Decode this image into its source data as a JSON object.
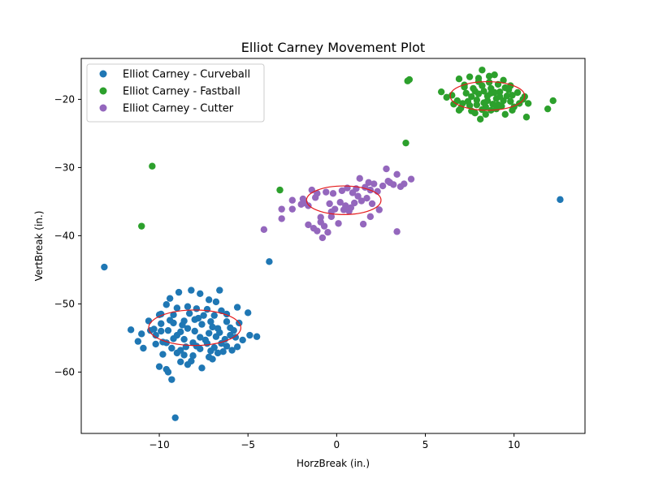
{
  "chart_data": {
    "type": "scatter",
    "title": "Elliot Carney Movement Plot",
    "xlabel": "HorzBreak (in.)",
    "ylabel": "VertBreak (in.)",
    "xlim": [
      -14.4,
      14.0
    ],
    "ylim": [
      -69.0,
      -14.0
    ],
    "xticks": [
      -10,
      -5,
      0,
      5,
      10
    ],
    "xtick_labels": [
      "−10",
      "−5",
      "0",
      "5",
      "10"
    ],
    "yticks": [
      -60,
      -50,
      -40,
      -30,
      -20
    ],
    "ytick_labels": [
      "−60",
      "−50",
      "−40",
      "−30",
      "−20"
    ],
    "grid": false,
    "legend_position": "upper-left",
    "series": [
      {
        "name": "Elliot Carney - Curveball",
        "color": "#1f77b4",
        "ellipse": {
          "cx": -8.0,
          "cy": -53.5,
          "rx": 2.6,
          "ry": 2.6
        },
        "points": [
          [
            -13.1,
            -44.6
          ],
          [
            -3.8,
            -43.8
          ],
          [
            12.6,
            -34.7
          ],
          [
            -9.1,
            -66.7
          ],
          [
            -9.3,
            -61.1
          ],
          [
            -11.6,
            -53.8
          ],
          [
            -11.0,
            -54.4
          ],
          [
            -11.2,
            -55.5
          ],
          [
            -10.2,
            -54.6
          ],
          [
            -9.9,
            -54.0
          ],
          [
            -10.0,
            -59.2
          ],
          [
            -9.5,
            -60.0
          ],
          [
            -9.6,
            -59.6
          ],
          [
            -8.8,
            -58.5
          ],
          [
            -8.4,
            -58.9
          ],
          [
            -8.2,
            -58.4
          ],
          [
            -7.6,
            -59.4
          ],
          [
            -7.2,
            -57.8
          ],
          [
            -6.7,
            -57.2
          ],
          [
            -6.2,
            -56.2
          ],
          [
            -5.6,
            -56.3
          ],
          [
            -5.7,
            -54.9
          ],
          [
            -4.9,
            -54.6
          ],
          [
            -4.5,
            -54.8
          ],
          [
            -5.0,
            -51.3
          ],
          [
            -5.5,
            -52.8
          ],
          [
            -6.0,
            -53.5
          ],
          [
            -6.5,
            -51.0
          ],
          [
            -6.8,
            -49.7
          ],
          [
            -6.6,
            -48.0
          ],
          [
            -7.2,
            -49.4
          ],
          [
            -7.7,
            -48.5
          ],
          [
            -8.2,
            -48.0
          ],
          [
            -8.9,
            -48.3
          ],
          [
            -9.4,
            -49.2
          ],
          [
            -9.6,
            -50.1
          ],
          [
            -9.0,
            -50.6
          ],
          [
            -9.9,
            -51.5
          ],
          [
            -10.6,
            -52.5
          ],
          [
            -10.3,
            -53.7
          ],
          [
            -10.9,
            -56.5
          ],
          [
            -9.8,
            -55.6
          ],
          [
            -9.3,
            -56.5
          ],
          [
            -9.0,
            -57.2
          ],
          [
            -8.5,
            -56.3
          ],
          [
            -8.1,
            -57.6
          ],
          [
            -7.7,
            -56.6
          ],
          [
            -7.3,
            -55.8
          ],
          [
            -6.9,
            -56.4
          ],
          [
            -6.3,
            -55.2
          ],
          [
            -6.0,
            -54.6
          ],
          [
            -6.7,
            -53.6
          ],
          [
            -7.1,
            -52.6
          ],
          [
            -7.5,
            -51.7
          ],
          [
            -7.9,
            -50.7
          ],
          [
            -8.3,
            -51.4
          ],
          [
            -8.6,
            -52.5
          ],
          [
            -9.2,
            -52.8
          ],
          [
            -9.5,
            -53.9
          ],
          [
            -9.0,
            -54.6
          ],
          [
            -8.6,
            -55.2
          ],
          [
            -8.1,
            -55.7
          ],
          [
            -7.7,
            -54.9
          ],
          [
            -7.2,
            -54.3
          ],
          [
            -6.8,
            -54.8
          ],
          [
            -6.5,
            -55.8
          ],
          [
            -7.0,
            -53.4
          ],
          [
            -7.6,
            -53.0
          ],
          [
            -8.0,
            -52.3
          ],
          [
            -8.4,
            -53.6
          ],
          [
            -8.8,
            -54.1
          ],
          [
            -9.2,
            -55.1
          ],
          [
            -9.6,
            -55.7
          ],
          [
            -10.2,
            -55.9
          ],
          [
            -8.0,
            -54.0
          ],
          [
            -7.4,
            -55.3
          ],
          [
            -6.2,
            -52.6
          ],
          [
            -5.8,
            -53.9
          ],
          [
            -5.3,
            -55.3
          ],
          [
            -6.4,
            -57.0
          ],
          [
            -7.0,
            -58.1
          ],
          [
            -8.6,
            -57.5
          ],
          [
            -9.8,
            -57.4
          ],
          [
            -10.5,
            -53.9
          ],
          [
            -10.0,
            -51.6
          ],
          [
            -9.2,
            -51.6
          ],
          [
            -8.4,
            -50.4
          ],
          [
            -7.3,
            -50.8
          ],
          [
            -6.2,
            -51.5
          ],
          [
            -5.6,
            -50.5
          ],
          [
            -6.9,
            -51.7
          ],
          [
            -7.8,
            -52.1
          ],
          [
            -8.7,
            -53.1
          ],
          [
            -9.4,
            -52.4
          ],
          [
            -9.9,
            -52.9
          ],
          [
            -7.1,
            -56.9
          ],
          [
            -7.9,
            -56.2
          ],
          [
            -8.8,
            -56.8
          ],
          [
            -6.6,
            -54.2
          ],
          [
            -5.9,
            -56.8
          ]
        ]
      },
      {
        "name": "Elliot Carney - Fastball",
        "color": "#2ca02c",
        "ellipse": {
          "cx": 8.5,
          "cy": -19.5,
          "rx": 2.1,
          "ry": 2.1
        },
        "points": [
          [
            -10.4,
            -29.8
          ],
          [
            -11.0,
            -38.6
          ],
          [
            -3.2,
            -33.3
          ],
          [
            3.9,
            -26.4
          ],
          [
            4.0,
            -17.3
          ],
          [
            4.1,
            -17.1
          ],
          [
            5.9,
            -18.9
          ],
          [
            6.2,
            -19.7
          ],
          [
            6.6,
            -20.7
          ],
          [
            6.9,
            -21.6
          ],
          [
            7.2,
            -18.2
          ],
          [
            6.9,
            -17.0
          ],
          [
            7.5,
            -16.7
          ],
          [
            8.0,
            -17.4
          ],
          [
            8.2,
            -15.7
          ],
          [
            8.6,
            -16.6
          ],
          [
            8.9,
            -16.4
          ],
          [
            9.4,
            -17.2
          ],
          [
            9.8,
            -18.0
          ],
          [
            10.2,
            -19.0
          ],
          [
            10.5,
            -20.0
          ],
          [
            10.8,
            -20.6
          ],
          [
            10.7,
            -22.6
          ],
          [
            11.9,
            -21.4
          ],
          [
            12.2,
            -20.2
          ],
          [
            9.9,
            -21.6
          ],
          [
            9.5,
            -22.2
          ],
          [
            8.7,
            -21.6
          ],
          [
            8.1,
            -22.9
          ],
          [
            7.6,
            -21.7
          ],
          [
            7.0,
            -21.3
          ],
          [
            6.8,
            -20.2
          ],
          [
            7.3,
            -19.1
          ],
          [
            7.7,
            -18.4
          ],
          [
            8.2,
            -18.0
          ],
          [
            8.7,
            -18.4
          ],
          [
            9.2,
            -18.9
          ],
          [
            9.6,
            -19.5
          ],
          [
            9.8,
            -20.3
          ],
          [
            9.3,
            -21.0
          ],
          [
            8.8,
            -20.7
          ],
          [
            8.4,
            -21.1
          ],
          [
            7.9,
            -20.8
          ],
          [
            7.4,
            -20.3
          ],
          [
            7.6,
            -19.6
          ],
          [
            8.0,
            -19.2
          ],
          [
            8.5,
            -19.5
          ],
          [
            9.0,
            -19.9
          ],
          [
            9.4,
            -20.2
          ],
          [
            8.9,
            -19.0
          ],
          [
            8.3,
            -18.8
          ],
          [
            7.8,
            -18.8
          ],
          [
            7.2,
            -17.9
          ],
          [
            8.6,
            -17.5
          ],
          [
            9.7,
            -18.6
          ],
          [
            10.3,
            -20.6
          ],
          [
            10.0,
            -21.1
          ],
          [
            9.1,
            -20.8
          ],
          [
            8.2,
            -21.5
          ],
          [
            7.5,
            -20.9
          ],
          [
            8.5,
            -20.2
          ],
          [
            9.2,
            -19.6
          ],
          [
            7.9,
            -20.1
          ],
          [
            8.7,
            -19.1
          ],
          [
            9.9,
            -19.4
          ],
          [
            10.6,
            -19.6
          ],
          [
            7.1,
            -20.6
          ],
          [
            6.5,
            -19.4
          ],
          [
            8.3,
            -20.5
          ],
          [
            9.5,
            -18.3
          ],
          [
            8.4,
            -22.2
          ],
          [
            7.8,
            -22.0
          ],
          [
            9.0,
            -21.4
          ],
          [
            8.0,
            -16.9
          ],
          [
            9.1,
            -17.8
          ]
        ]
      },
      {
        "name": "Elliot Carney - Cutter",
        "color": "#9467bd",
        "ellipse": {
          "cx": 0.4,
          "cy": -34.8,
          "rx": 2.1,
          "ry": 2.1
        },
        "points": [
          [
            -4.1,
            -39.1
          ],
          [
            -3.1,
            -36.1
          ],
          [
            -3.1,
            -37.5
          ],
          [
            -2.5,
            -34.8
          ],
          [
            -2.5,
            -36.1
          ],
          [
            -1.9,
            -34.6
          ],
          [
            -1.6,
            -35.6
          ],
          [
            -1.6,
            -38.4
          ],
          [
            -1.4,
            -33.3
          ],
          [
            -1.3,
            -38.9
          ],
          [
            -1.1,
            -39.3
          ],
          [
            -0.9,
            -38.0
          ],
          [
            -0.8,
            -40.3
          ],
          [
            -0.7,
            -38.6
          ],
          [
            -0.5,
            -39.5
          ],
          [
            -0.3,
            -37.2
          ],
          [
            -0.1,
            -36.1
          ],
          [
            0.2,
            -35.1
          ],
          [
            0.4,
            -36.2
          ],
          [
            0.5,
            -35.6
          ],
          [
            0.7,
            -36.4
          ],
          [
            1.0,
            -35.2
          ],
          [
            1.2,
            -34.2
          ],
          [
            1.1,
            -33.1
          ],
          [
            1.3,
            -31.6
          ],
          [
            1.5,
            -38.3
          ],
          [
            1.7,
            -34.5
          ],
          [
            1.9,
            -33.3
          ],
          [
            1.9,
            -37.2
          ],
          [
            2.1,
            -32.4
          ],
          [
            2.3,
            -33.5
          ],
          [
            2.4,
            -36.2
          ],
          [
            2.8,
            -30.2
          ],
          [
            3.0,
            -32.2
          ],
          [
            3.2,
            -32.5
          ],
          [
            3.4,
            -31.0
          ],
          [
            3.6,
            -32.8
          ],
          [
            3.8,
            -32.4
          ],
          [
            4.2,
            -31.7
          ],
          [
            3.4,
            -39.4
          ],
          [
            -1.8,
            -35.2
          ],
          [
            -1.2,
            -34.4
          ],
          [
            -0.6,
            -33.6
          ],
          [
            -0.2,
            -33.8
          ],
          [
            0.3,
            -33.4
          ],
          [
            0.9,
            -33.7
          ],
          [
            1.4,
            -34.9
          ],
          [
            2.0,
            -35.3
          ],
          [
            2.6,
            -32.7
          ],
          [
            -0.4,
            -35.3
          ],
          [
            0.6,
            -33.0
          ],
          [
            1.6,
            -32.9
          ],
          [
            -1.1,
            -33.8
          ],
          [
            -2.0,
            -35.4
          ],
          [
            -0.9,
            -37.3
          ],
          [
            0.1,
            -38.2
          ],
          [
            0.8,
            -35.9
          ],
          [
            -0.3,
            -36.5
          ],
          [
            1.8,
            -32.2
          ],
          [
            2.9,
            -32.0
          ]
        ]
      }
    ]
  }
}
